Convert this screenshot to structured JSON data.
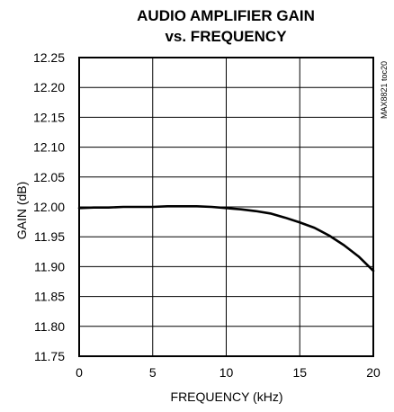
{
  "chart_data": {
    "type": "line",
    "title_line1": "AUDIO AMPLIFIER GAIN",
    "title_line2": "vs. FREQUENCY",
    "xlabel": "FREQUENCY (kHz)",
    "ylabel": "GAIN (dB)",
    "xlim": [
      0,
      20
    ],
    "ylim": [
      11.75,
      12.25
    ],
    "x_ticks": [
      0,
      5,
      10,
      15,
      20
    ],
    "x_tick_labels": [
      "0",
      "5",
      "10",
      "15",
      "20"
    ],
    "y_ticks": [
      11.75,
      11.8,
      11.85,
      11.9,
      11.95,
      12.0,
      12.05,
      12.1,
      12.15,
      12.2,
      12.25
    ],
    "y_tick_labels": [
      "11.75",
      "11.80",
      "11.85",
      "11.90",
      "11.95",
      "12.00",
      "12.05",
      "12.10",
      "12.15",
      "12.20",
      "12.25"
    ],
    "grid": true,
    "line_color": "#000000",
    "series": [
      {
        "x": [
          0,
          1,
          2,
          3,
          4,
          5,
          6,
          7,
          8,
          9,
          10,
          11,
          12,
          13,
          14,
          15,
          16,
          17,
          18,
          19,
          20
        ],
        "values": [
          11.998,
          11.999,
          11.999,
          12.0,
          12.0,
          12.0,
          12.001,
          12.001,
          12.001,
          12.0,
          11.998,
          11.996,
          11.993,
          11.989,
          11.982,
          11.974,
          11.965,
          11.952,
          11.936,
          11.917,
          11.893
        ]
      }
    ],
    "watermark": "MAX8821 toc20"
  }
}
